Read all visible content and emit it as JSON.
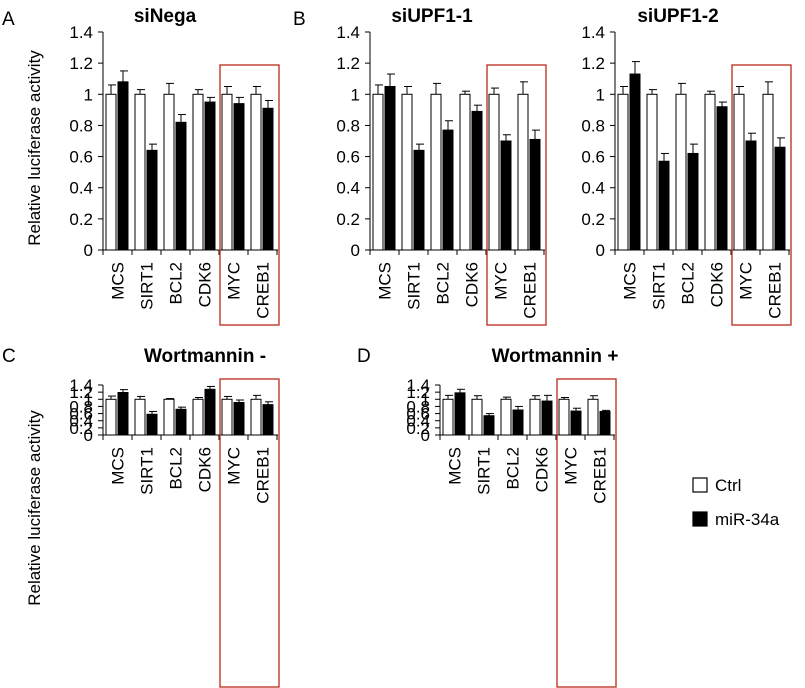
{
  "chart_data": {
    "type": "bar",
    "ylabel": "Relative luciferase activity",
    "ylim": [
      0,
      1.4
    ],
    "yticks": [
      "0",
      "0.2",
      "0.4",
      "0.6",
      "0.8",
      "1",
      "1.2",
      "1.4"
    ],
    "categories": [
      "MCS",
      "SIRT1",
      "BCL2",
      "CDK6",
      "MYC",
      "CREB1"
    ],
    "legend": [
      {
        "name": "Ctrl",
        "fill": "#ffffff"
      },
      {
        "name": "miR-34a",
        "fill": "#000000"
      }
    ],
    "highlight_color": "#c0392b",
    "highlighted_categories": [
      "MYC",
      "CREB1"
    ],
    "panels": [
      {
        "letter": "A",
        "title": "siNega",
        "series": [
          {
            "name": "Ctrl",
            "values": [
              1.0,
              1.0,
              1.0,
              1.0,
              1.0,
              1.0
            ],
            "errors": [
              0.06,
              0.03,
              0.07,
              0.03,
              0.05,
              0.05
            ]
          },
          {
            "name": "miR-34a",
            "values": [
              1.08,
              0.64,
              0.82,
              0.95,
              0.94,
              0.91
            ],
            "errors": [
              0.07,
              0.04,
              0.05,
              0.03,
              0.04,
              0.05
            ]
          }
        ]
      },
      {
        "letter": "B",
        "title": "siUPF1-1",
        "series": [
          {
            "name": "Ctrl",
            "values": [
              1.0,
              1.0,
              1.0,
              1.0,
              1.0,
              1.0
            ],
            "errors": [
              0.06,
              0.05,
              0.07,
              0.02,
              0.04,
              0.08
            ]
          },
          {
            "name": "miR-34a",
            "values": [
              1.05,
              0.64,
              0.77,
              0.89,
              0.7,
              0.71
            ],
            "errors": [
              0.08,
              0.04,
              0.06,
              0.04,
              0.04,
              0.06
            ]
          }
        ]
      },
      {
        "letter": "",
        "title": "siUPF1-2",
        "series": [
          {
            "name": "Ctrl",
            "values": [
              1.0,
              1.0,
              1.0,
              1.0,
              1.0,
              1.0
            ],
            "errors": [
              0.05,
              0.03,
              0.07,
              0.02,
              0.05,
              0.08
            ]
          },
          {
            "name": "miR-34a",
            "values": [
              1.13,
              0.57,
              0.62,
              0.92,
              0.7,
              0.66
            ],
            "errors": [
              0.08,
              0.05,
              0.06,
              0.03,
              0.05,
              0.06
            ]
          }
        ]
      },
      {
        "letter": "C",
        "title": "Wortmannin -",
        "series": [
          {
            "name": "Ctrl",
            "values": [
              1.0,
              1.0,
              1.0,
              1.0,
              1.0,
              1.0
            ],
            "errors": [
              0.09,
              0.08,
              0.02,
              0.05,
              0.08,
              0.11
            ]
          },
          {
            "name": "miR-34a",
            "values": [
              1.19,
              0.58,
              0.72,
              1.28,
              0.91,
              0.85
            ],
            "errors": [
              0.08,
              0.08,
              0.06,
              0.08,
              0.07,
              0.08
            ]
          }
        ]
      },
      {
        "letter": "D",
        "title": "Wortmannin +",
        "series": [
          {
            "name": "Ctrl",
            "values": [
              1.0,
              1.0,
              1.0,
              1.0,
              1.0,
              1.0
            ],
            "errors": [
              0.11,
              0.1,
              0.06,
              0.1,
              0.05,
              0.1
            ]
          },
          {
            "name": "miR-34a",
            "values": [
              1.18,
              0.54,
              0.7,
              0.95,
              0.67,
              0.66
            ],
            "errors": [
              0.1,
              0.06,
              0.1,
              0.16,
              0.08,
              0.03
            ]
          }
        ]
      }
    ]
  }
}
